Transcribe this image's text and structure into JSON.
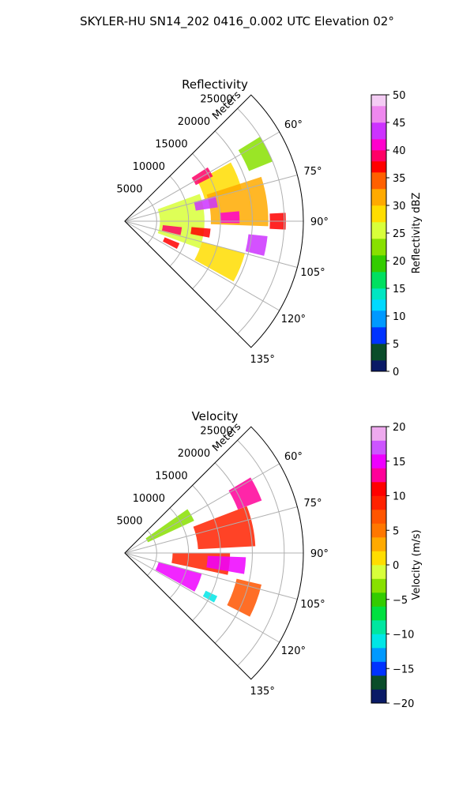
{
  "figure": {
    "title": "SKYLER-HU  SN14_202  0416_0.002 UTC Elevation 02°"
  },
  "chart_data": [
    {
      "type": "heatmap",
      "projection": "polar-sector",
      "title": "Reflectivity",
      "radial_label": "Meters",
      "radial_ticks": [
        5000,
        10000,
        15000,
        20000,
        25000
      ],
      "radial_tick_labels": [
        "5000",
        "10000",
        "15000",
        "20000",
        "25000"
      ],
      "theta_ticks_deg": [
        60,
        75,
        90,
        105,
        120,
        135
      ],
      "theta_tick_labels": [
        "60°",
        "75°",
        "90°",
        "105°",
        "120°",
        "135°"
      ],
      "theta_range_deg": [
        45,
        135
      ],
      "r_max": 28000,
      "grid": true,
      "colorbar": {
        "label": "Reflectivity dBZ",
        "range": [
          0,
          50
        ],
        "ticks": [
          0,
          5,
          10,
          15,
          20,
          25,
          30,
          35,
          40,
          45,
          50
        ],
        "tick_labels": [
          "0",
          "5",
          "10",
          "15",
          "20",
          "25",
          "30",
          "35",
          "40",
          "45",
          "50"
        ],
        "colormap": [
          [
            0,
            "#0a1a66"
          ],
          [
            2,
            "#0b4d2a"
          ],
          [
            5,
            "#0033ff"
          ],
          [
            8,
            "#0099ff"
          ],
          [
            11,
            "#00d9ff"
          ],
          [
            13,
            "#00e6c2"
          ],
          [
            15,
            "#00e060"
          ],
          [
            18,
            "#33cc00"
          ],
          [
            21,
            "#88e000"
          ],
          [
            24,
            "#d8ff3a"
          ],
          [
            27,
            "#ffdd00"
          ],
          [
            30,
            "#ffaa00"
          ],
          [
            33,
            "#ff6000"
          ],
          [
            36,
            "#ff0000"
          ],
          [
            38,
            "#ff0066"
          ],
          [
            40,
            "#ff00cc"
          ],
          [
            42,
            "#cc33ff"
          ],
          [
            45,
            "#ee88ee"
          ],
          [
            48,
            "#f4ccf4"
          ],
          [
            50,
            "#fbeefb"
          ]
        ]
      },
      "field": {
        "background_level": 0,
        "regions": [
          {
            "r": 23000,
            "theta": 63,
            "dr": 4000,
            "dth": 10,
            "level": 22
          },
          {
            "r": 16000,
            "theta": 68,
            "dr": 6000,
            "dth": 14,
            "level": 27
          },
          {
            "r": 18000,
            "theta": 82,
            "dr": 9000,
            "dth": 20,
            "level": 30
          },
          {
            "r": 9000,
            "theta": 90,
            "dr": 7000,
            "dth": 40,
            "level": 26
          },
          {
            "r": 16000,
            "theta": 112,
            "dr": 7000,
            "dth": 14,
            "level": 28
          },
          {
            "r": 14000,
            "theta": 60,
            "dr": 3000,
            "dth": 6,
            "level": 38
          },
          {
            "r": 13000,
            "theta": 78,
            "dr": 3500,
            "dth": 7,
            "level": 42
          },
          {
            "r": 16500,
            "theta": 88,
            "dr": 3000,
            "dth": 6,
            "level": 40
          },
          {
            "r": 7500,
            "theta": 100,
            "dr": 3000,
            "dth": 8,
            "level": 38
          },
          {
            "r": 12000,
            "theta": 98,
            "dr": 3000,
            "dth": 6,
            "level": 37
          },
          {
            "r": 21000,
            "theta": 100,
            "dr": 3000,
            "dth": 8,
            "level": 44
          },
          {
            "r": 24000,
            "theta": 90,
            "dr": 2500,
            "dth": 6,
            "level": 36
          },
          {
            "r": 8000,
            "theta": 115,
            "dr": 2500,
            "dth": 6,
            "level": 36
          }
        ]
      }
    },
    {
      "type": "heatmap",
      "projection": "polar-sector",
      "title": "Velocity",
      "radial_label": "Meters",
      "radial_ticks": [
        5000,
        10000,
        15000,
        20000,
        25000
      ],
      "radial_tick_labels": [
        "5000",
        "10000",
        "15000",
        "20000",
        "25000"
      ],
      "theta_ticks_deg": [
        60,
        75,
        90,
        105,
        120,
        135
      ],
      "theta_tick_labels": [
        "60°",
        "75°",
        "90°",
        "105°",
        "120°",
        "135°"
      ],
      "theta_range_deg": [
        45,
        135
      ],
      "r_max": 28000,
      "grid": true,
      "colorbar": {
        "label": "Velocity (m/s)",
        "range": [
          -20,
          20
        ],
        "ticks": [
          -20,
          -15,
          -10,
          -5,
          0,
          5,
          10,
          15,
          20
        ],
        "tick_labels": [
          "−20",
          "−15",
          "−10",
          "−5",
          "0",
          "5",
          "10",
          "15",
          "20"
        ],
        "colormap": [
          [
            -20,
            "#0a1a66"
          ],
          [
            -18,
            "#0b4d2a"
          ],
          [
            -16,
            "#0033ff"
          ],
          [
            -14,
            "#0099ff"
          ],
          [
            -12,
            "#00e6e6"
          ],
          [
            -10,
            "#00e6a0"
          ],
          [
            -8,
            "#00e040"
          ],
          [
            -6,
            "#33cc00"
          ],
          [
            -4,
            "#88e000"
          ],
          [
            -2,
            "#d8ff3a"
          ],
          [
            0,
            "#ffdd00"
          ],
          [
            2,
            "#ffaa00"
          ],
          [
            4,
            "#ff7700"
          ],
          [
            6,
            "#ff5500"
          ],
          [
            8,
            "#ff2200"
          ],
          [
            10,
            "#ff0000"
          ],
          [
            12,
            "#ff0099"
          ],
          [
            14,
            "#ee00ff"
          ],
          [
            16,
            "#cc55ff"
          ],
          [
            18,
            "#eeaaee"
          ],
          [
            20,
            "#f8e6f8"
          ]
        ]
      },
      "field": {
        "background_level": 0,
        "regions": [
          {
            "r": 8000,
            "theta": 60,
            "dr": 8000,
            "dth": 10,
            "level": -3
          },
          {
            "r": 16000,
            "theta": 78,
            "dr": 9000,
            "dth": 18,
            "level": 8
          },
          {
            "r": 21000,
            "theta": 64,
            "dr": 4000,
            "dth": 10,
            "level": 13
          },
          {
            "r": 12000,
            "theta": 96,
            "dr": 9000,
            "dth": 12,
            "level": 9
          },
          {
            "r": 9000,
            "theta": 112,
            "dr": 7000,
            "dth": 14,
            "level": 14
          },
          {
            "r": 20000,
            "theta": 110,
            "dr": 4000,
            "dth": 14,
            "level": 7
          },
          {
            "r": 16000,
            "theta": 96,
            "dr": 6000,
            "dth": 8,
            "level": 14
          },
          {
            "r": 15000,
            "theta": 117,
            "dr": 2000,
            "dth": 4,
            "level": -12
          }
        ]
      }
    }
  ]
}
